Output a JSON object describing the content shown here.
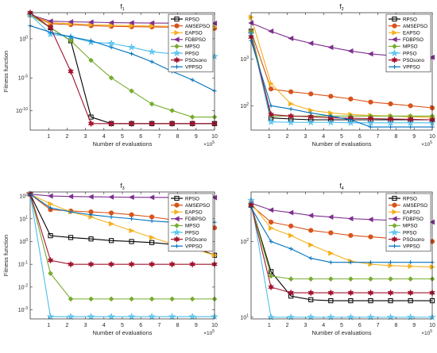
{
  "colors": {
    "RPSO": "#000000",
    "AMSEPSO": "#d95319",
    "EAPSO": "#f5b01e",
    "FDBPSO": "#7e2f8e",
    "MPSO": "#77ac30",
    "PPSO": "#4dbeee",
    "PSOsono": "#a2142f",
    "VPPSO": "#0072bd"
  },
  "chart_data": [
    {
      "type": "line",
      "title": "f",
      "title_sub": "1",
      "xlabel": "Number of evaluations",
      "ylabel": "Fitness function",
      "x_exponent": "×10",
      "x_exponent_power": "5",
      "yscale": "log",
      "xlim": [
        0,
        10
      ],
      "ylim": [
        1e-13,
        100000.0
      ],
      "xticks": [
        "1",
        "2",
        "3",
        "4",
        "5",
        "6",
        "7",
        "8",
        "9",
        "10"
      ],
      "yticks": [
        {
          "value": 10,
          "base": "10",
          "exp": "0"
        },
        {
          "value": 1e-05,
          "base": "10",
          "exp": "-5"
        },
        {
          "value": 1e-10,
          "base": "10",
          "exp": "-10"
        }
      ],
      "legend": "top-right",
      "x": [
        0,
        1.1,
        2.2,
        3.3,
        4.4,
        5.5,
        6.6,
        7.7,
        8.8,
        10
      ],
      "series": [
        {
          "name": "RPSO",
          "marker": "square",
          "values": [
            50000.0,
            500,
            5,
            1e-11,
            1e-12,
            1e-12,
            1e-12,
            1e-12,
            1e-12,
            1e-12
          ]
        },
        {
          "name": "AMSEPSO",
          "marker": "circle",
          "values": [
            50000.0,
            2000.0,
            1500.0,
            1000.0,
            800,
            700,
            650,
            600,
            500,
            400
          ]
        },
        {
          "name": "EAPSO",
          "marker": "triangle-right",
          "values": [
            50000.0,
            3000.0,
            2000.0,
            1500.0,
            1200.0,
            1000.0,
            900,
            800,
            700,
            650
          ]
        },
        {
          "name": "FDBPSO",
          "marker": "triangle-left",
          "values": [
            50000.0,
            5000.0,
            4000.0,
            3500.0,
            3000.0,
            2800.0,
            2600.0,
            2500.0,
            2400.0,
            2300.0
          ]
        },
        {
          "name": "MPSO",
          "marker": "diamond",
          "values": [
            50000.0,
            500,
            5,
            0.005,
            1e-05,
            1e-07,
            1e-09,
            1e-10,
            1e-11,
            1e-11
          ]
        },
        {
          "name": "PPSO",
          "marker": "star",
          "values": [
            50000.0,
            50,
            20,
            3,
            2,
            0.5,
            0.1,
            0.05,
            0.03,
            0.02
          ]
        },
        {
          "name": "PSOsono",
          "marker": "hexagram",
          "values": [
            100000.0,
            500,
            0.0001,
            1e-12,
            1e-12,
            1e-12,
            1e-12,
            1e-12,
            1e-12,
            1e-12
          ]
        },
        {
          "name": "VPPSO",
          "marker": "plus",
          "values": [
            1000.0,
            100,
            20,
            5,
            0.5,
            0.05,
            0.003,
            0.0001,
            5e-06,
            1e-07
          ]
        }
      ]
    },
    {
      "type": "line",
      "title": "f",
      "title_sub": "2",
      "xlabel": "Number of evaluations",
      "ylabel": "",
      "x_exponent": "×10",
      "x_exponent_power": "5",
      "yscale": "log",
      "xlim": [
        0,
        10
      ],
      "ylim": [
        30,
        10000
      ],
      "xticks": [
        "1",
        "2",
        "3",
        "4",
        "5",
        "6",
        "7",
        "8",
        "9",
        "10"
      ],
      "yticks": [
        {
          "value": 1000,
          "base": "10",
          "exp": "3"
        },
        {
          "value": 100,
          "base": "10",
          "exp": "2"
        }
      ],
      "legend": "top-right",
      "x": [
        0,
        1.1,
        2.2,
        3.3,
        4.4,
        5.5,
        6.6,
        7.7,
        8.8,
        10
      ],
      "series": [
        {
          "name": "RPSO",
          "marker": "square",
          "values": [
            4000,
            55,
            52,
            50,
            50,
            50,
            50,
            50,
            50,
            50
          ]
        },
        {
          "name": "AMSEPSO",
          "marker": "circle",
          "values": [
            4000,
            230,
            200,
            180,
            160,
            140,
            120,
            110,
            100,
            90
          ]
        },
        {
          "name": "EAPSO",
          "marker": "triangle-right",
          "values": [
            8000,
            300,
            110,
            80,
            70,
            65,
            62,
            60,
            58,
            56
          ]
        },
        {
          "name": "FDBPSO",
          "marker": "triangle-left",
          "values": [
            6000,
            4000,
            2800,
            2200,
            1800,
            1500,
            1300,
            1200,
            1150,
            1100
          ]
        },
        {
          "name": "MPSO",
          "marker": "diamond",
          "values": [
            4000,
            60,
            60,
            60,
            60,
            60,
            60,
            60,
            60,
            60
          ]
        },
        {
          "name": "PPSO",
          "marker": "star",
          "values": [
            3500,
            45,
            44,
            44,
            44,
            43,
            43,
            43,
            43,
            43
          ]
        },
        {
          "name": "PSOsono",
          "marker": "hexagram",
          "values": [
            3000,
            65,
            60,
            58,
            55,
            54,
            53,
            52,
            51,
            50
          ]
        },
        {
          "name": "VPPSO",
          "marker": "plus",
          "values": [
            2500,
            100,
            85,
            70,
            60,
            50,
            35,
            35,
            35,
            35
          ]
        }
      ]
    },
    {
      "type": "line",
      "title": "f",
      "title_sub": "3",
      "xlabel": "Number of evaluations",
      "ylabel": "Fitness function",
      "x_exponent": "×10",
      "x_exponent_power": "5",
      "yscale": "log",
      "xlim": [
        0,
        10
      ],
      "ylim": [
        0.0004,
        150
      ],
      "xticks": [
        "1",
        "2",
        "3",
        "4",
        "5",
        "6",
        "7",
        "8",
        "9",
        "10"
      ],
      "yticks": [
        {
          "value": 100,
          "base": "10",
          "exp": "2"
        },
        {
          "value": 10,
          "base": "10",
          "exp": "1"
        },
        {
          "value": 1,
          "base": "10",
          "exp": "0"
        },
        {
          "value": 0.1,
          "base": "10",
          "exp": "-1"
        },
        {
          "value": 0.01,
          "base": "10",
          "exp": "-2"
        },
        {
          "value": 0.001,
          "base": "10",
          "exp": "-3"
        }
      ],
      "legend": "top-right",
      "x": [
        0,
        1.1,
        2.2,
        3.3,
        4.4,
        5.5,
        6.6,
        7.7,
        8.8,
        10
      ],
      "series": [
        {
          "name": "RPSO",
          "marker": "square",
          "values": [
            120,
            1.8,
            1.5,
            1.3,
            1.1,
            1.0,
            0.9,
            0.75,
            0.6,
            0.25
          ]
        },
        {
          "name": "AMSEPSO",
          "marker": "circle",
          "values": [
            120,
            25,
            22,
            20,
            18,
            15,
            12,
            9,
            6,
            4
          ]
        },
        {
          "name": "EAPSO",
          "marker": "triangle-right",
          "values": [
            120,
            45,
            20,
            12,
            6,
            3,
            1.5,
            0.8,
            0.5,
            0.25
          ]
        },
        {
          "name": "FDBPSO",
          "marker": "triangle-left",
          "values": [
            120,
            100,
            95,
            92,
            90,
            88,
            87,
            86,
            85,
            85
          ]
        },
        {
          "name": "MPSO",
          "marker": "diamond",
          "values": [
            120,
            0.04,
            0.003,
            0.003,
            0.003,
            0.003,
            0.003,
            0.003,
            0.003,
            0.003
          ]
        },
        {
          "name": "PPSO",
          "marker": "star",
          "values": [
            120,
            0.0005,
            0.0005,
            0.0005,
            0.0005,
            0.0005,
            0.0005,
            0.0005,
            0.0005,
            0.0005
          ]
        },
        {
          "name": "PSOsono",
          "marker": "hexagram",
          "values": [
            120,
            0.15,
            0.1,
            0.1,
            0.1,
            0.1,
            0.1,
            0.1,
            0.1,
            0.1
          ]
        },
        {
          "name": "VPPSO",
          "marker": "plus",
          "values": [
            120,
            30,
            20,
            15,
            12,
            10,
            8,
            7,
            7,
            7
          ]
        }
      ]
    },
    {
      "type": "line",
      "title": "f",
      "title_sub": "4",
      "xlabel": "Number of evaluations",
      "ylabel": "",
      "x_exponent": "×10",
      "x_exponent_power": "5",
      "yscale": "log",
      "xlim": [
        0,
        10
      ],
      "ylim": [
        9.5,
        450
      ],
      "xticks": [
        "1",
        "2",
        "3",
        "4",
        "5",
        "6",
        "7",
        "8",
        "9",
        "10"
      ],
      "yticks": [
        {
          "value": 100,
          "base": "10",
          "exp": "2"
        },
        {
          "value": 10,
          "base": "10",
          "exp": "1"
        }
      ],
      "legend": "top-right",
      "x": [
        0,
        1.1,
        2.2,
        3.3,
        4.4,
        5.5,
        6.6,
        7.7,
        8.8,
        10
      ],
      "series": [
        {
          "name": "RPSO",
          "marker": "square",
          "values": [
            300,
            40,
            19,
            17,
            16.5,
            16.5,
            16.5,
            16.5,
            16.5,
            16.5
          ]
        },
        {
          "name": "AMSEPSO",
          "marker": "circle",
          "values": [
            300,
            180,
            160,
            140,
            130,
            120,
            115,
            110,
            105,
            100
          ]
        },
        {
          "name": "EAPSO",
          "marker": "triangle-right",
          "values": [
            320,
            150,
            120,
            90,
            70,
            55,
            50,
            48,
            47,
            46
          ]
        },
        {
          "name": "FDBPSO",
          "marker": "triangle-left",
          "values": [
            320,
            260,
            240,
            220,
            210,
            200,
            195,
            190,
            185,
            180
          ]
        },
        {
          "name": "MPSO",
          "marker": "diamond",
          "values": [
            300,
            35,
            32,
            32,
            32,
            32,
            32,
            32,
            32,
            32
          ]
        },
        {
          "name": "PPSO",
          "marker": "star",
          "values": [
            350,
            10,
            10,
            10,
            10,
            10,
            10,
            10,
            10,
            10
          ]
        },
        {
          "name": "PSOsono",
          "marker": "hexagram",
          "values": [
            300,
            25,
            21,
            21,
            21,
            21,
            21,
            21,
            21,
            21
          ]
        },
        {
          "name": "VPPSO",
          "marker": "plus",
          "values": [
            280,
            100,
            80,
            60,
            53,
            53,
            53,
            53,
            53,
            53
          ]
        }
      ]
    }
  ]
}
